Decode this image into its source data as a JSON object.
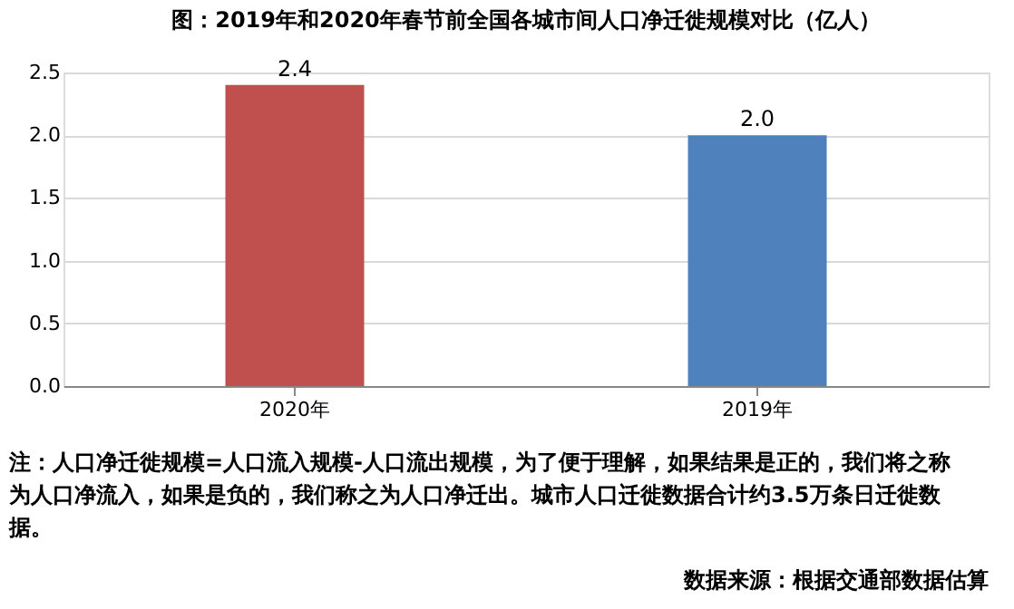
{
  "chart_data": {
    "type": "bar",
    "title": "图：2019年和2020年春节前全国各城市间人口净迁徙规模对比（亿人）",
    "categories": [
      "2020年",
      "2019年"
    ],
    "values": [
      2.4,
      2.0
    ],
    "colors": [
      "#c0504d",
      "#4f81bd"
    ],
    "value_labels": [
      "2.4",
      "2.0"
    ],
    "ylim": [
      0,
      2.5
    ],
    "yticks": [
      {
        "value": 0,
        "label": "0.0"
      },
      {
        "value": 0.5,
        "label": "0.5"
      },
      {
        "value": 1,
        "label": "1.0"
      },
      {
        "value": 1.5,
        "label": "1.5"
      },
      {
        "value": 2,
        "label": "2.0"
      },
      {
        "value": 2.5,
        "label": "2.5"
      }
    ],
    "grid": "y",
    "annotations": [
      "注：人口净迁徙规模=人口流入规模-人口流出规模，为了便于理解，如果结果是正的，我们将之称为人口净流入，如果是负的，我们称之为人口净迁出。城市人口迁徙数据合计约3.5万条日迁徙数据。",
      "数据来源：根据交通部数据估算"
    ]
  }
}
